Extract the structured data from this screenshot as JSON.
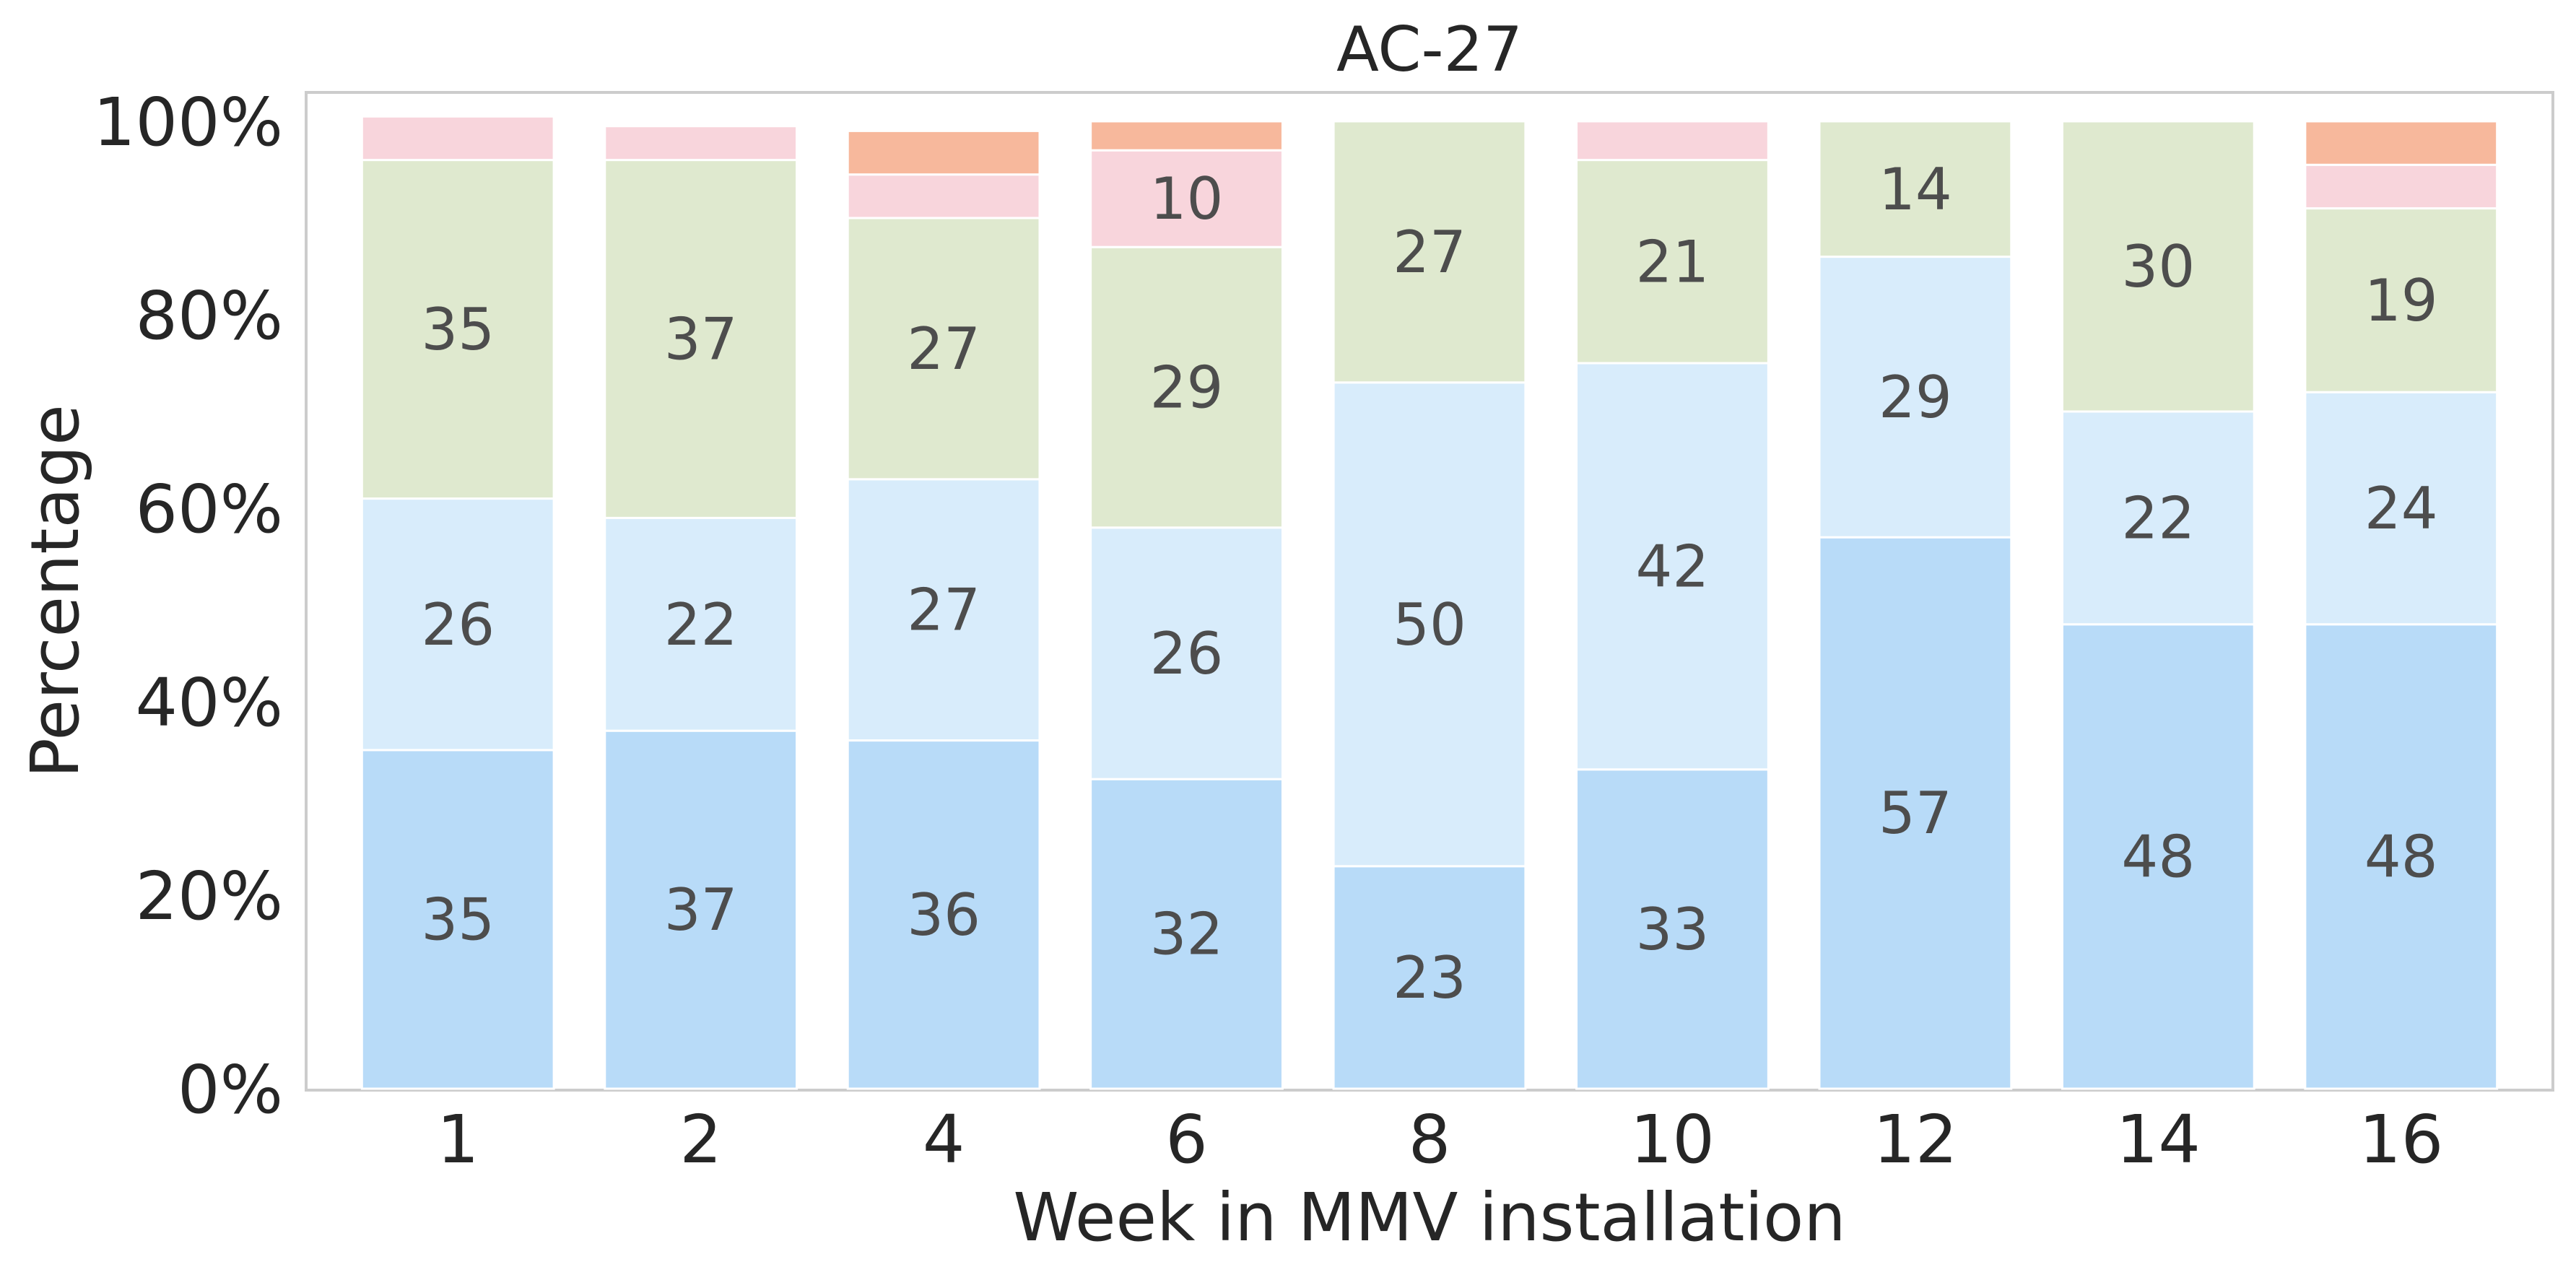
{
  "chart_data": {
    "type": "bar",
    "stacked": true,
    "normalized_percent": true,
    "title": "AC-27",
    "xlabel": "Week in MMV installation",
    "ylabel": "Percentage",
    "categories": [
      "1",
      "2",
      "4",
      "6",
      "8",
      "10",
      "12",
      "14",
      "16"
    ],
    "ylim": [
      0,
      100
    ],
    "yticks": [
      "0%",
      "20%",
      "40%",
      "60%",
      "80%",
      "100%"
    ],
    "grid": false,
    "legend": "none",
    "series": [
      {
        "color": "#b8dbf8",
        "values": [
          35,
          37,
          36,
          32,
          23,
          33,
          57,
          48,
          48
        ],
        "labels": [
          "35",
          "37",
          "36",
          "32",
          "23",
          "33",
          "57",
          "48",
          "48"
        ]
      },
      {
        "color": "#d8ecfb",
        "values": [
          26,
          22,
          27,
          26,
          50,
          42,
          29,
          22,
          24
        ],
        "labels": [
          "26",
          "22",
          "27",
          "26",
          "50",
          "42",
          "29",
          "22",
          "24"
        ]
      },
      {
        "color": "#dfe9cf",
        "values": [
          35,
          37,
          27,
          29,
          27,
          21,
          14,
          30,
          19
        ],
        "labels": [
          "35",
          "37",
          "27",
          "29",
          "27",
          "21",
          "14",
          "30",
          "19"
        ]
      },
      {
        "color": "#f8d5dc",
        "values": [
          4.5,
          3.5,
          4.5,
          10,
          0,
          4,
          0,
          0,
          4.5
        ],
        "labels": [
          "",
          "",
          "",
          "10",
          "",
          "",
          "",
          "",
          ""
        ]
      },
      {
        "color": "#f7b89c",
        "values": [
          0,
          0,
          4.5,
          3,
          0,
          0,
          0,
          0,
          4.5
        ],
        "labels": [
          "",
          "",
          "",
          "",
          "",
          "",
          "",
          "",
          ""
        ]
      }
    ]
  }
}
